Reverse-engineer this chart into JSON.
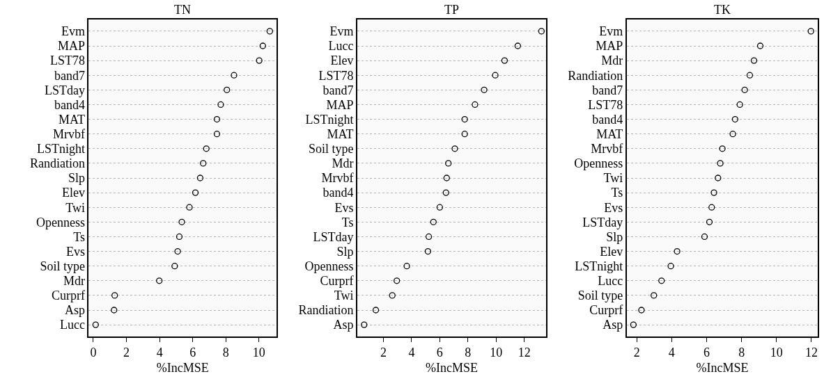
{
  "chart_data": [
    {
      "type": "scatter",
      "title": "TN",
      "xlabel": "%IncMSE",
      "orientation": "horizontal",
      "marker": "circle",
      "color": "#000000",
      "grid": "y",
      "xlim": [
        -0.28,
        11.07
      ],
      "xticks": [
        0,
        2,
        4,
        6,
        8,
        10
      ],
      "categories": [
        "Evm",
        "MAP",
        "LST78",
        "band7",
        "LSTday",
        "band4",
        "MAT",
        "Mrvbf",
        "LSTnight",
        "Randiation",
        "Slp",
        "Elev",
        "Twi",
        "Openness",
        "Ts",
        "Evs",
        "Soil type",
        "Mdr",
        "Curprf",
        "Asp",
        "Lucc"
      ],
      "values": [
        10.65,
        10.23,
        10.01,
        8.49,
        8.06,
        7.69,
        7.46,
        7.46,
        6.82,
        6.63,
        6.45,
        6.16,
        5.8,
        5.34,
        5.19,
        5.09,
        4.91,
        3.98,
        1.29,
        1.25,
        0.14
      ]
    },
    {
      "type": "scatter",
      "title": "TP",
      "xlabel": "%IncMSE",
      "orientation": "horizontal",
      "marker": "circle",
      "color": "#000000",
      "grid": "y",
      "xlim": [
        0.14,
        13.55
      ],
      "xticks": [
        2,
        4,
        6,
        8,
        10,
        12
      ],
      "categories": [
        "Evm",
        "Lucc",
        "Elev",
        "LST78",
        "band7",
        "MAP",
        "LSTnight",
        "MAT",
        "Soil type",
        "Mdr",
        "Mrvbf",
        "band4",
        "Evs",
        "Ts",
        "LSTday",
        "Slp",
        "Openness",
        "Curprf",
        "Twi",
        "Randiation",
        "Asp"
      ],
      "values": [
        13.22,
        11.54,
        10.6,
        9.94,
        9.15,
        8.5,
        7.77,
        7.77,
        7.07,
        6.61,
        6.49,
        6.44,
        6.0,
        5.55,
        5.22,
        5.16,
        3.66,
        2.95,
        2.63,
        1.46,
        0.63
      ]
    },
    {
      "type": "scatter",
      "title": "TK",
      "xlabel": "%IncMSE",
      "orientation": "horizontal",
      "marker": "circle",
      "color": "#000000",
      "grid": "y",
      "xlim": [
        1.42,
        12.37
      ],
      "xticks": [
        2,
        4,
        6,
        8,
        10,
        12
      ],
      "categories": [
        "Evm",
        "MAP",
        "Mdr",
        "Randiation",
        "band7",
        "LST78",
        "band4",
        "MAT",
        "Mrvbf",
        "Openness",
        "Twi",
        "Ts",
        "Evs",
        "LSTday",
        "Slp",
        "Elev",
        "LSTnight",
        "Lucc",
        "Soil type",
        "Curprf",
        "Asp"
      ],
      "values": [
        11.97,
        9.07,
        8.71,
        8.47,
        8.18,
        7.9,
        7.63,
        7.5,
        6.9,
        6.78,
        6.65,
        6.42,
        6.29,
        6.16,
        5.88,
        4.31,
        3.95,
        3.42,
        2.98,
        2.27,
        1.81
      ]
    }
  ]
}
